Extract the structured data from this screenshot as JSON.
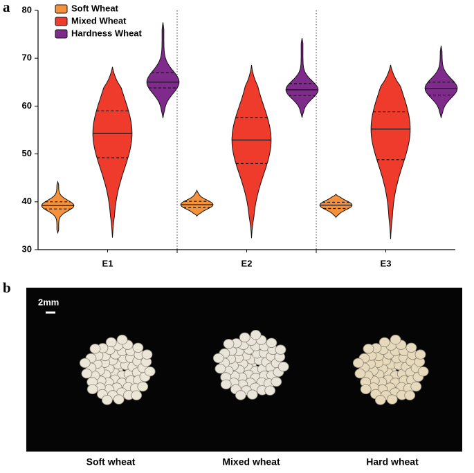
{
  "chart_data": {
    "type": "violin",
    "panel_label": "a",
    "categories": [
      "E1",
      "E2",
      "E3"
    ],
    "ylim": [
      30,
      80
    ],
    "yticks": [
      30,
      40,
      50,
      60,
      70,
      80
    ],
    "legend": "top-left",
    "series": [
      {
        "name": "Soft Wheat",
        "color": "#f5913a",
        "stats": [
          {
            "min": 33.5,
            "q1": 38.5,
            "median": 39.2,
            "q3": 40.0,
            "max": 44.2
          },
          {
            "min": 37.0,
            "q1": 38.8,
            "median": 39.4,
            "q3": 40.1,
            "max": 42.4
          },
          {
            "min": 36.7,
            "q1": 38.6,
            "median": 39.3,
            "q3": 39.9,
            "max": 41.6
          }
        ]
      },
      {
        "name": "Mixed Wheat",
        "color": "#ee3b2c",
        "stats": [
          {
            "min": 32.5,
            "q1": 49.2,
            "median": 54.3,
            "q3": 59.0,
            "max": 68.2
          },
          {
            "min": 32.4,
            "q1": 48.0,
            "median": 52.9,
            "q3": 57.6,
            "max": 68.6
          },
          {
            "min": 32.2,
            "q1": 48.8,
            "median": 55.2,
            "q3": 58.8,
            "max": 68.6
          }
        ]
      },
      {
        "name": "Hardness Wheat",
        "color": "#7f2b8c",
        "stats": [
          {
            "min": 57.5,
            "q1": 63.8,
            "median": 65.0,
            "q3": 67.0,
            "max": 77.5
          },
          {
            "min": 57.6,
            "q1": 62.2,
            "median": 63.4,
            "q3": 64.7,
            "max": 74.2
          },
          {
            "min": 57.5,
            "q1": 62.3,
            "median": 63.7,
            "q3": 65.0,
            "max": 72.6
          }
        ]
      }
    ]
  },
  "figure_b": {
    "label": "b",
    "scale_bar": "2mm",
    "captions": [
      "Soft wheat",
      "Mixed wheat",
      "Hard wheat"
    ]
  }
}
